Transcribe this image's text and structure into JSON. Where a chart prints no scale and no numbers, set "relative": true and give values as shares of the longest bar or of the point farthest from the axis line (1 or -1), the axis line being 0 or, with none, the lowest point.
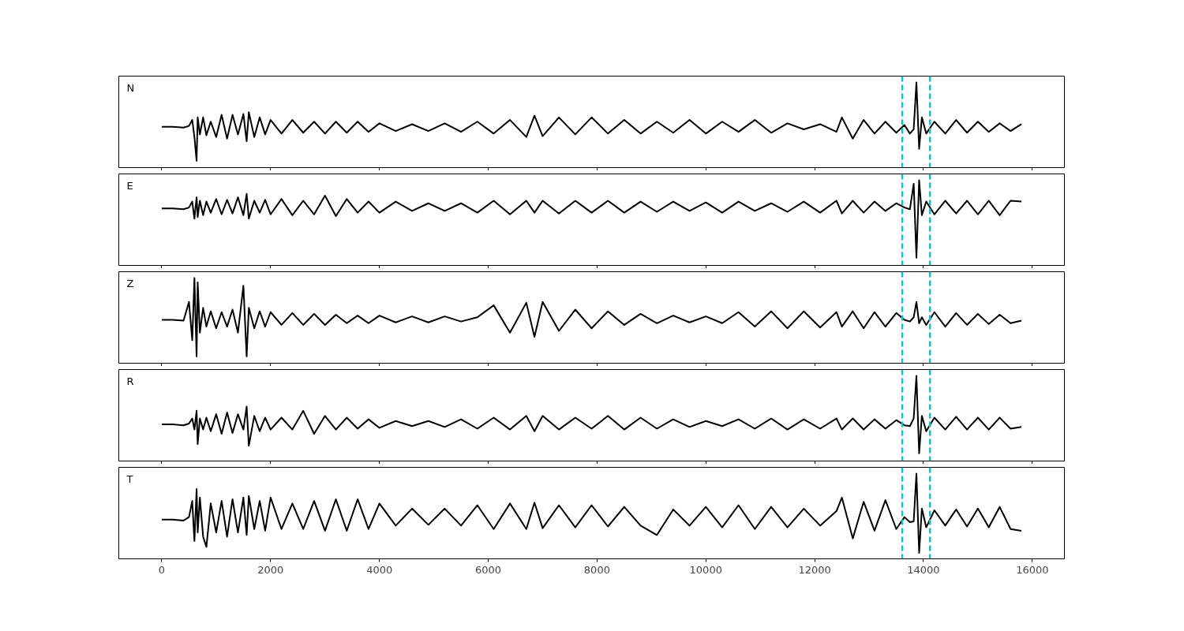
{
  "chart_data": [
    {
      "type": "line",
      "relative": true,
      "annotations": [
        "N"
      ],
      "xlim": [
        -790,
        16590
      ],
      "xticks": [
        0,
        2000,
        4000,
        6000,
        8000,
        10000,
        12000,
        14000,
        16000
      ],
      "tick_labels": false,
      "x": [
        0,
        200,
        400,
        500,
        560,
        600,
        640,
        660,
        700,
        760,
        820,
        900,
        1000,
        1100,
        1200,
        1300,
        1400,
        1500,
        1560,
        1600,
        1700,
        1800,
        1900,
        2000,
        2200,
        2400,
        2600,
        2800,
        3000,
        3200,
        3400,
        3600,
        3800,
        4000,
        4300,
        4600,
        4900,
        5200,
        5500,
        5800,
        6100,
        6400,
        6700,
        6850,
        7000,
        7300,
        7600,
        7900,
        8200,
        8500,
        8800,
        9100,
        9400,
        9700,
        10000,
        10300,
        10600,
        10900,
        11200,
        11500,
        11800,
        12100,
        12400,
        12500,
        12700,
        12900,
        13100,
        13300,
        13500,
        13650,
        13750,
        13820,
        13870,
        13920,
        13970,
        14050,
        14200,
        14400,
        14600,
        14800,
        15000,
        15200,
        15400,
        15600,
        15800
      ],
      "ref_lines": [
        {
          "axis": "x",
          "value": 13610,
          "color": "#17becf",
          "line_style": "dashed"
        },
        {
          "axis": "x",
          "value": 14120,
          "color": "#17becf",
          "line_style": "dashed"
        }
      ],
      "series": [
        {
          "color": "#000000",
          "values": [
            0.48,
            0.48,
            0.47,
            0.49,
            0.56,
            0.36,
            0.08,
            0.59,
            0.39,
            0.59,
            0.38,
            0.54,
            0.36,
            0.62,
            0.34,
            0.62,
            0.39,
            0.63,
            0.31,
            0.65,
            0.36,
            0.59,
            0.39,
            0.56,
            0.4,
            0.56,
            0.41,
            0.54,
            0.4,
            0.54,
            0.41,
            0.54,
            0.42,
            0.52,
            0.43,
            0.51,
            0.43,
            0.52,
            0.42,
            0.54,
            0.4,
            0.56,
            0.36,
            0.61,
            0.37,
            0.59,
            0.39,
            0.59,
            0.4,
            0.56,
            0.4,
            0.54,
            0.41,
            0.56,
            0.4,
            0.54,
            0.42,
            0.56,
            0.41,
            0.52,
            0.45,
            0.51,
            0.42,
            0.59,
            0.34,
            0.56,
            0.4,
            0.54,
            0.41,
            0.5,
            0.4,
            0.45,
            1.0,
            0.22,
            0.59,
            0.4,
            0.54,
            0.4,
            0.56,
            0.41,
            0.54,
            0.42,
            0.52,
            0.43,
            0.51
          ]
        }
      ]
    },
    {
      "type": "line",
      "relative": true,
      "annotations": [
        "E"
      ],
      "xlim": [
        -790,
        16590
      ],
      "xticks": [
        0,
        2000,
        4000,
        6000,
        8000,
        10000,
        12000,
        14000,
        16000
      ],
      "tick_labels": false,
      "x": [
        0,
        200,
        400,
        500,
        560,
        600,
        640,
        660,
        700,
        760,
        820,
        900,
        1000,
        1100,
        1200,
        1300,
        1400,
        1500,
        1560,
        1600,
        1700,
        1800,
        1900,
        2000,
        2200,
        2400,
        2600,
        2800,
        3000,
        3200,
        3400,
        3600,
        3800,
        4000,
        4300,
        4600,
        4900,
        5200,
        5500,
        5800,
        6100,
        6400,
        6700,
        6850,
        7000,
        7300,
        7600,
        7900,
        8200,
        8500,
        8800,
        9100,
        9400,
        9700,
        10000,
        10300,
        10600,
        10900,
        11200,
        11500,
        11800,
        12100,
        12400,
        12500,
        12700,
        12900,
        13100,
        13300,
        13500,
        13650,
        13750,
        13820,
        13870,
        13920,
        13970,
        14050,
        14200,
        14400,
        14600,
        14800,
        15000,
        15200,
        15400,
        15600,
        15800
      ],
      "ref_lines": [
        {
          "axis": "x",
          "value": 13610,
          "color": "#17becf",
          "line_style": "dashed"
        },
        {
          "axis": "x",
          "value": 14120,
          "color": "#17becf",
          "line_style": "dashed"
        }
      ],
      "series": [
        {
          "color": "#000000",
          "values": [
            0.67,
            0.67,
            0.66,
            0.68,
            0.75,
            0.55,
            0.8,
            0.57,
            0.76,
            0.59,
            0.75,
            0.62,
            0.78,
            0.6,
            0.77,
            0.61,
            0.8,
            0.59,
            0.84,
            0.55,
            0.76,
            0.62,
            0.77,
            0.6,
            0.78,
            0.59,
            0.76,
            0.6,
            0.82,
            0.58,
            0.78,
            0.62,
            0.75,
            0.62,
            0.75,
            0.64,
            0.73,
            0.64,
            0.73,
            0.62,
            0.76,
            0.6,
            0.76,
            0.62,
            0.76,
            0.61,
            0.76,
            0.62,
            0.76,
            0.62,
            0.75,
            0.63,
            0.75,
            0.64,
            0.74,
            0.62,
            0.75,
            0.64,
            0.73,
            0.63,
            0.75,
            0.62,
            0.76,
            0.61,
            0.76,
            0.62,
            0.75,
            0.64,
            0.73,
            0.68,
            0.66,
            0.96,
            0.09,
            1.0,
            0.59,
            0.75,
            0.6,
            0.76,
            0.61,
            0.76,
            0.6,
            0.76,
            0.59,
            0.76,
            0.75
          ]
        }
      ]
    },
    {
      "type": "line",
      "relative": true,
      "annotations": [
        "Z"
      ],
      "xlim": [
        -790,
        16590
      ],
      "xticks": [
        0,
        2000,
        4000,
        6000,
        8000,
        10000,
        12000,
        14000,
        16000
      ],
      "tick_labels": false,
      "x": [
        0,
        200,
        400,
        500,
        560,
        600,
        640,
        660,
        700,
        760,
        820,
        900,
        1000,
        1100,
        1200,
        1300,
        1400,
        1500,
        1560,
        1600,
        1700,
        1800,
        1900,
        2000,
        2200,
        2400,
        2600,
        2800,
        3000,
        3200,
        3400,
        3600,
        3800,
        4000,
        4300,
        4600,
        4900,
        5200,
        5500,
        5800,
        6100,
        6400,
        6700,
        6850,
        7000,
        7300,
        7600,
        7900,
        8200,
        8500,
        8800,
        9100,
        9400,
        9700,
        10000,
        10300,
        10600,
        10900,
        11200,
        11500,
        11800,
        12100,
        12400,
        12500,
        12700,
        12900,
        13100,
        13300,
        13500,
        13650,
        13750,
        13820,
        13870,
        13920,
        13970,
        14050,
        14200,
        14400,
        14600,
        14800,
        15000,
        15200,
        15400,
        15600,
        15800
      ],
      "ref_lines": [
        {
          "axis": "x",
          "value": 13610,
          "color": "#17becf",
          "line_style": "dashed"
        },
        {
          "axis": "x",
          "value": 14120,
          "color": "#17becf",
          "line_style": "dashed"
        }
      ],
      "series": [
        {
          "color": "#000000",
          "values": [
            0.51,
            0.51,
            0.5,
            0.72,
            0.27,
            1.0,
            0.08,
            0.95,
            0.36,
            0.65,
            0.43,
            0.61,
            0.41,
            0.6,
            0.43,
            0.63,
            0.36,
            0.91,
            0.08,
            0.65,
            0.41,
            0.61,
            0.43,
            0.6,
            0.45,
            0.59,
            0.45,
            0.58,
            0.45,
            0.57,
            0.47,
            0.56,
            0.47,
            0.56,
            0.48,
            0.55,
            0.48,
            0.55,
            0.49,
            0.54,
            0.68,
            0.36,
            0.71,
            0.31,
            0.72,
            0.38,
            0.63,
            0.41,
            0.61,
            0.45,
            0.58,
            0.47,
            0.56,
            0.48,
            0.55,
            0.47,
            0.6,
            0.43,
            0.61,
            0.41,
            0.61,
            0.42,
            0.6,
            0.43,
            0.61,
            0.41,
            0.6,
            0.43,
            0.59,
            0.51,
            0.49,
            0.54,
            0.72,
            0.47,
            0.54,
            0.45,
            0.6,
            0.43,
            0.59,
            0.45,
            0.58,
            0.46,
            0.57,
            0.47,
            0.5
          ]
        }
      ]
    },
    {
      "type": "line",
      "relative": true,
      "annotations": [
        "R"
      ],
      "xlim": [
        -790,
        16590
      ],
      "xticks": [
        0,
        2000,
        4000,
        6000,
        8000,
        10000,
        12000,
        14000,
        16000
      ],
      "tick_labels": false,
      "x": [
        0,
        200,
        400,
        500,
        560,
        600,
        640,
        660,
        700,
        760,
        820,
        900,
        1000,
        1100,
        1200,
        1300,
        1400,
        1500,
        1560,
        1600,
        1700,
        1800,
        1900,
        2000,
        2200,
        2400,
        2600,
        2800,
        3000,
        3200,
        3400,
        3600,
        3800,
        4000,
        4300,
        4600,
        4900,
        5200,
        5500,
        5800,
        6100,
        6400,
        6700,
        6850,
        7000,
        7300,
        7600,
        7900,
        8200,
        8500,
        8800,
        9100,
        9400,
        9700,
        10000,
        10300,
        10600,
        10900,
        11200,
        11500,
        11800,
        12100,
        12400,
        12500,
        12700,
        12900,
        13100,
        13300,
        13500,
        13650,
        13750,
        13820,
        13870,
        13920,
        13970,
        14050,
        14200,
        14400,
        14600,
        14800,
        15000,
        15200,
        15400,
        15600,
        15800
      ],
      "ref_lines": [
        {
          "axis": "x",
          "value": 13610,
          "color": "#17becf",
          "line_style": "dashed"
        },
        {
          "axis": "x",
          "value": 14120,
          "color": "#17becf",
          "line_style": "dashed"
        }
      ],
      "series": [
        {
          "color": "#000000",
          "values": [
            0.43,
            0.43,
            0.42,
            0.44,
            0.5,
            0.37,
            0.59,
            0.2,
            0.5,
            0.37,
            0.51,
            0.35,
            0.55,
            0.32,
            0.57,
            0.33,
            0.55,
            0.37,
            0.64,
            0.18,
            0.53,
            0.35,
            0.51,
            0.37,
            0.51,
            0.37,
            0.59,
            0.32,
            0.53,
            0.37,
            0.51,
            0.38,
            0.49,
            0.39,
            0.47,
            0.41,
            0.47,
            0.4,
            0.49,
            0.38,
            0.51,
            0.37,
            0.53,
            0.35,
            0.53,
            0.37,
            0.51,
            0.38,
            0.53,
            0.37,
            0.51,
            0.38,
            0.49,
            0.4,
            0.47,
            0.41,
            0.49,
            0.38,
            0.5,
            0.37,
            0.49,
            0.38,
            0.5,
            0.37,
            0.5,
            0.37,
            0.49,
            0.38,
            0.48,
            0.42,
            0.41,
            0.5,
            1.0,
            0.09,
            0.53,
            0.35,
            0.51,
            0.37,
            0.52,
            0.37,
            0.51,
            0.37,
            0.51,
            0.38,
            0.4
          ]
        }
      ]
    },
    {
      "type": "line",
      "relative": true,
      "annotations": [
        "T"
      ],
      "xlim": [
        -790,
        16590
      ],
      "xticks": [
        0,
        2000,
        4000,
        6000,
        8000,
        10000,
        12000,
        14000,
        16000
      ],
      "tick_labels": "x",
      "x": [
        0,
        200,
        400,
        500,
        560,
        600,
        640,
        660,
        700,
        760,
        820,
        900,
        1000,
        1100,
        1200,
        1300,
        1400,
        1500,
        1560,
        1600,
        1700,
        1800,
        1900,
        2000,
        2200,
        2400,
        2600,
        2800,
        3000,
        3200,
        3400,
        3600,
        3800,
        4000,
        4300,
        4600,
        4900,
        5200,
        5500,
        5800,
        6100,
        6400,
        6700,
        6850,
        7000,
        7300,
        7600,
        7900,
        8200,
        8500,
        8800,
        9100,
        9400,
        9700,
        10000,
        10300,
        10600,
        10900,
        11200,
        11500,
        11800,
        12100,
        12400,
        12500,
        12700,
        12900,
        13100,
        13300,
        13500,
        13650,
        13750,
        13820,
        13870,
        13920,
        13970,
        14050,
        14200,
        14400,
        14600,
        14800,
        15000,
        15200,
        15400,
        15600,
        15800
      ],
      "ref_lines": [
        {
          "axis": "x",
          "value": 13610,
          "color": "#17becf",
          "line_style": "dashed"
        },
        {
          "axis": "x",
          "value": 14120,
          "color": "#17becf",
          "line_style": "dashed"
        }
      ],
      "series": [
        {
          "color": "#000000",
          "values": [
            0.46,
            0.46,
            0.45,
            0.49,
            0.68,
            0.21,
            0.82,
            0.31,
            0.72,
            0.26,
            0.14,
            0.65,
            0.31,
            0.68,
            0.26,
            0.7,
            0.31,
            0.72,
            0.28,
            0.74,
            0.35,
            0.68,
            0.33,
            0.72,
            0.35,
            0.65,
            0.35,
            0.68,
            0.33,
            0.7,
            0.33,
            0.7,
            0.35,
            0.65,
            0.39,
            0.59,
            0.4,
            0.59,
            0.39,
            0.63,
            0.35,
            0.65,
            0.35,
            0.66,
            0.36,
            0.63,
            0.37,
            0.63,
            0.38,
            0.61,
            0.39,
            0.28,
            0.58,
            0.39,
            0.61,
            0.37,
            0.63,
            0.35,
            0.61,
            0.37,
            0.59,
            0.39,
            0.56,
            0.72,
            0.24,
            0.67,
            0.33,
            0.69,
            0.35,
            0.49,
            0.43,
            0.44,
            1.0,
            0.07,
            0.59,
            0.37,
            0.57,
            0.39,
            0.58,
            0.38,
            0.59,
            0.37,
            0.61,
            0.35,
            0.33
          ]
        }
      ]
    }
  ]
}
